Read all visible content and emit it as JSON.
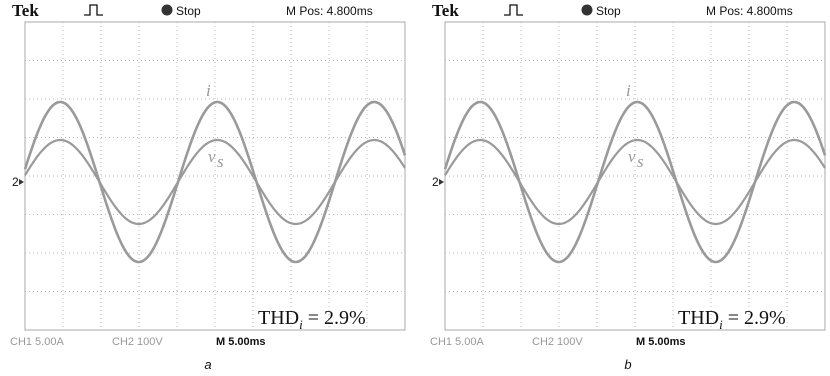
{
  "panels": [
    {
      "header": {
        "brand": "Tek",
        "status": "Stop",
        "position": "M Pos: 4.800ms"
      },
      "trace_labels": {
        "current": "i",
        "voltage": "v",
        "voltage_sub": "s"
      },
      "marker": "2",
      "annotation": {
        "text": "THD",
        "sub": "i",
        "rest": " = 2.9%"
      },
      "footer": {
        "ch1": "CH1  5.00A",
        "ch2": "CH2  100V",
        "timebase": "M 5.00ms"
      },
      "caption": "a"
    },
    {
      "header": {
        "brand": "Tek",
        "status": "Stop",
        "position": "M Pos: 4.800ms"
      },
      "trace_labels": {
        "current": "i",
        "voltage": "v",
        "voltage_sub": "s"
      },
      "marker": "2",
      "annotation": {
        "text": "THD",
        "sub": "i",
        "rest": " = 2.9%"
      },
      "footer": {
        "ch1": "CH1  5.00A",
        "ch2": "CH2  100V",
        "timebase": "M 5.00ms"
      },
      "caption": "b"
    }
  ]
}
